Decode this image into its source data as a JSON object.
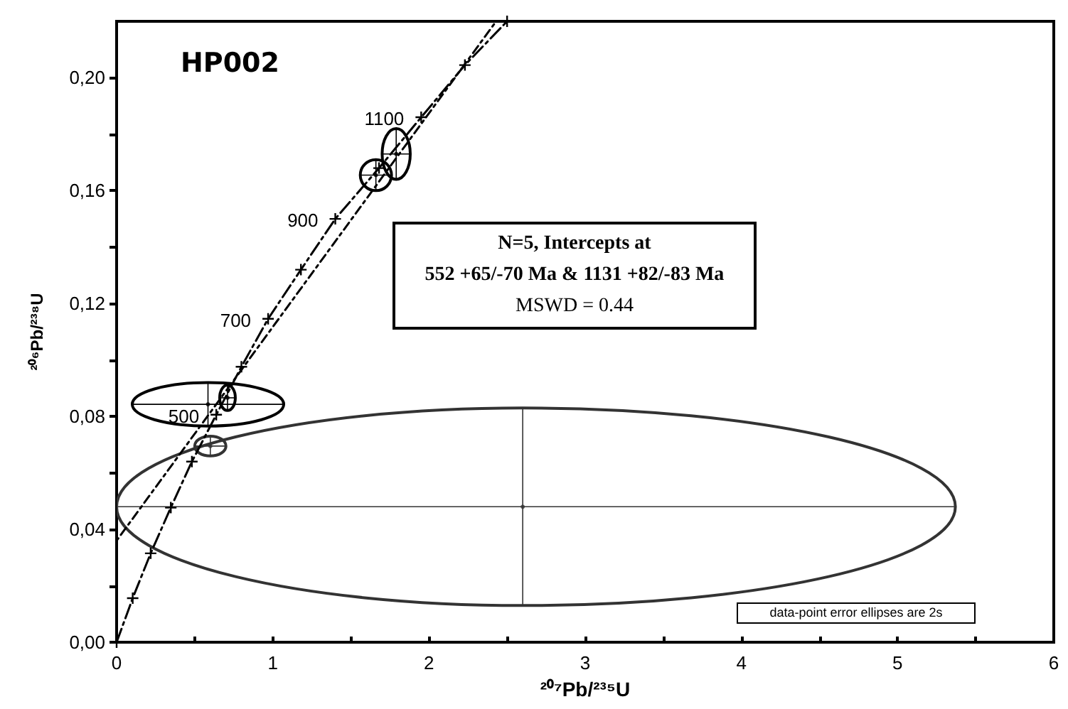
{
  "chart_data": {
    "type": "line",
    "title": "HP002",
    "xlabel": "²⁰⁷Pb/²³⁵U",
    "ylabel": "²⁰⁶Pb/²³⁸U",
    "xlim": [
      0,
      6
    ],
    "ylim": [
      0,
      0.22
    ],
    "xticks": [
      0,
      {
        "value": 0.5,
        "label": null
      },
      1,
      {
        "value": 1.5,
        "label": null
      },
      2,
      {
        "value": 2.5,
        "label": null
      },
      3,
      {
        "value": 3.5,
        "label": null
      },
      4,
      {
        "value": 4.5,
        "label": null
      },
      5,
      {
        "value": 5.5,
        "label": null
      },
      6
    ],
    "yticks": [
      {
        "value": 0,
        "label": "0,00"
      },
      {
        "value": 0.02,
        "label": null
      },
      {
        "value": 0.04,
        "label": "0,04"
      },
      {
        "value": 0.06,
        "label": null
      },
      {
        "value": 0.08,
        "label": "0,08"
      },
      {
        "value": 0.1,
        "label": null
      },
      {
        "value": 0.12,
        "label": "0,12"
      },
      {
        "value": 0.14,
        "label": null
      },
      {
        "value": 0.16,
        "label": "0,16"
      },
      {
        "value": 0.18,
        "label": null
      },
      {
        "value": 0.2,
        "label": "0,20"
      }
    ],
    "grid": false,
    "marker": "none",
    "series": [
      {
        "color": "#000000",
        "marker": "cross",
        "line_style": "dashed",
        "x": [
          0,
          0.103,
          0.218,
          0.347,
          0.482,
          0.638,
          0.799,
          0.97,
          1.18,
          1.4,
          1.68,
          1.95,
          2.23,
          2.5
        ],
        "values": [
          0,
          0.0156,
          0.0315,
          0.0477,
          0.064,
          0.0806,
          0.0976,
          0.1146,
          0.132,
          0.15,
          0.168,
          0.186,
          0.2045,
          0.22
        ]
      },
      {
        "color": "#000000",
        "line_style": "dotted",
        "x": [
          0,
          2.43
        ],
        "values": [
          0.036,
          0.22
        ]
      },
      {
        "type": "scatter",
        "marker": "circle",
        "colors": [
          "#333333",
          "#000000",
          "#000000",
          "#333333",
          "#000000",
          "#000000"
        ],
        "x": [
          2.6,
          0.585,
          0.71,
          0.6,
          1.66,
          1.79
        ],
        "values": [
          0.048,
          0.0843,
          0.0866,
          0.0695,
          0.1655,
          0.173
        ],
        "xerrors": [
          [
            0,
            5.37
          ],
          0.485,
          0.05,
          0.1,
          0.1,
          0.09
        ],
        "errors": [
          0.035,
          0.0077,
          0.0045,
          0.0035,
          0.0055,
          0.009
        ]
      }
    ],
    "annotations": [
      {
        "text": "1100",
        "x": 1.95,
        "y": 0.186
      },
      {
        "text": "900",
        "x": 1.4,
        "y": 0.15
      },
      {
        "text": "700",
        "x": 0.97,
        "y": 0.1146
      },
      {
        "text": "500",
        "x": 0.638,
        "y": 0.0806
      },
      "N=5, Intercepts at",
      "552  +65/-70  Ma & 1131  +82/-83  Ma",
      "MSWD = 0.44",
      "data-point error ellipses are 2s"
    ]
  }
}
